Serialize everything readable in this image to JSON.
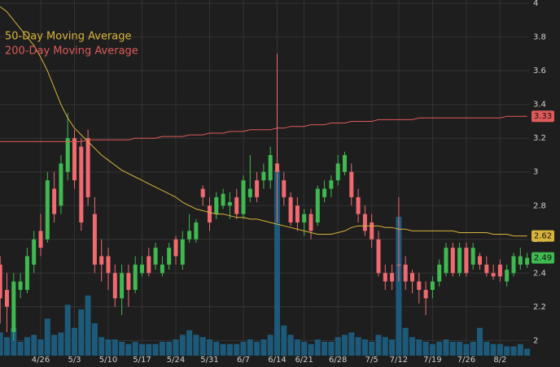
{
  "chart_data": {
    "type": "candlestick",
    "categories": [
      null,
      null,
      null,
      null,
      null,
      null,
      "4/26",
      null,
      null,
      null,
      null,
      "5/3",
      null,
      null,
      null,
      null,
      "5/10",
      null,
      null,
      null,
      null,
      "5/17",
      null,
      null,
      null,
      null,
      "5/24",
      null,
      null,
      null,
      null,
      "5/31",
      null,
      null,
      null,
      null,
      "6/7",
      null,
      null,
      null,
      null,
      "6/14",
      null,
      null,
      null,
      "6/21",
      null,
      null,
      null,
      null,
      "6/28",
      null,
      null,
      null,
      null,
      "7/5",
      null,
      null,
      null,
      "7/12",
      null,
      null,
      null,
      null,
      "7/19",
      null,
      null,
      null,
      null,
      "7/26",
      null,
      null,
      null,
      null,
      "8/2",
      null,
      null,
      null,
      null
    ],
    "open": [
      2.45,
      2.3,
      2.05,
      2.3,
      2.3,
      2.45,
      2.65,
      2.6,
      2.9,
      2.8,
      3.0,
      3.2,
      3.15,
      3.2,
      2.75,
      2.5,
      2.5,
      2.4,
      2.25,
      2.4,
      2.3,
      2.4,
      2.5,
      2.45,
      2.4,
      2.45,
      2.6,
      2.45,
      2.6,
      2.6,
      2.9,
      2.8,
      2.75,
      2.8,
      2.8,
      2.85,
      2.75,
      2.85,
      2.95,
      2.95,
      2.95,
      3.05,
      2.95,
      2.85,
      2.8,
      2.7,
      2.75,
      2.7,
      2.85,
      2.9,
      2.95,
      3.0,
      3.0,
      2.85,
      2.75,
      2.7,
      2.6,
      2.4,
      2.4,
      2.45,
      2.45,
      2.4,
      2.35,
      2.3,
      2.3,
      2.35,
      2.4,
      2.55,
      2.4,
      2.55,
      2.45,
      2.5,
      2.45,
      2.4,
      2.45,
      2.35,
      2.4,
      2.45,
      2.45
    ],
    "high": [
      2.5,
      2.4,
      2.4,
      2.4,
      2.55,
      2.65,
      2.75,
      3.0,
      3.0,
      3.1,
      3.35,
      3.25,
      3.2,
      3.25,
      2.85,
      2.6,
      2.55,
      2.45,
      2.45,
      2.45,
      2.5,
      2.5,
      2.55,
      2.58,
      2.5,
      2.58,
      2.62,
      2.65,
      2.75,
      2.72,
      2.92,
      2.85,
      2.88,
      2.9,
      2.88,
      2.9,
      2.98,
      3.1,
      3.0,
      3.05,
      3.15,
      3.7,
      3.0,
      2.88,
      2.85,
      2.78,
      2.78,
      2.92,
      2.95,
      2.98,
      3.1,
      3.12,
      3.05,
      2.9,
      2.8,
      2.75,
      2.65,
      2.45,
      2.45,
      2.85,
      2.5,
      2.42,
      2.4,
      2.35,
      2.38,
      2.48,
      2.58,
      2.58,
      2.58,
      2.58,
      2.58,
      2.52,
      2.5,
      2.45,
      2.48,
      2.45,
      2.52,
      2.55,
      2.52
    ],
    "low": [
      2.1,
      2.05,
      2.0,
      2.25,
      2.28,
      2.4,
      2.5,
      2.58,
      2.7,
      2.75,
      2.95,
      2.9,
      2.65,
      2.8,
      2.4,
      2.35,
      2.3,
      2.2,
      2.15,
      2.2,
      2.28,
      2.38,
      2.38,
      2.42,
      2.38,
      2.42,
      2.45,
      2.42,
      2.58,
      2.58,
      2.8,
      2.65,
      2.72,
      2.78,
      2.72,
      2.72,
      2.72,
      2.82,
      2.82,
      2.9,
      2.9,
      2.7,
      2.8,
      2.68,
      2.65,
      2.62,
      2.6,
      2.68,
      2.82,
      2.85,
      2.92,
      2.98,
      2.8,
      2.7,
      2.62,
      2.55,
      2.38,
      2.3,
      2.3,
      2.35,
      2.3,
      2.28,
      2.22,
      2.15,
      2.25,
      2.32,
      2.38,
      2.38,
      2.38,
      2.38,
      2.42,
      2.42,
      2.38,
      2.36,
      2.35,
      2.32,
      2.38,
      2.42,
      2.43
    ],
    "close": [
      2.25,
      2.2,
      2.35,
      2.35,
      2.5,
      2.6,
      2.55,
      2.95,
      2.75,
      3.05,
      3.2,
      2.95,
      2.7,
      2.85,
      2.45,
      2.45,
      2.4,
      2.25,
      2.4,
      2.3,
      2.45,
      2.45,
      2.4,
      2.55,
      2.45,
      2.55,
      2.5,
      2.6,
      2.65,
      2.7,
      2.85,
      2.7,
      2.85,
      2.87,
      2.82,
      2.75,
      2.95,
      2.9,
      2.85,
      3.0,
      3.1,
      3.0,
      2.85,
      2.7,
      2.7,
      2.75,
      2.65,
      2.9,
      2.9,
      2.95,
      3.05,
      3.1,
      2.85,
      2.75,
      2.65,
      2.6,
      2.4,
      2.35,
      2.35,
      2.45,
      2.35,
      2.35,
      2.3,
      2.25,
      2.35,
      2.45,
      2.55,
      2.4,
      2.55,
      2.4,
      2.55,
      2.45,
      2.4,
      2.38,
      2.38,
      2.42,
      2.5,
      2.5,
      2.49
    ],
    "volume": [
      1.0,
      0.8,
      1.2,
      0.6,
      0.8,
      0.9,
      0.7,
      1.6,
      0.9,
      1.0,
      2.2,
      1.2,
      2.0,
      2.6,
      1.4,
      0.8,
      0.7,
      0.7,
      0.6,
      0.5,
      0.6,
      0.5,
      0.5,
      0.5,
      0.6,
      0.6,
      0.7,
      0.9,
      1.1,
      0.9,
      0.8,
      0.7,
      0.6,
      0.5,
      0.5,
      0.5,
      0.6,
      0.7,
      0.6,
      0.7,
      0.9,
      8.0,
      1.3,
      0.9,
      0.7,
      0.6,
      0.5,
      0.7,
      0.6,
      0.6,
      0.8,
      0.9,
      1.0,
      0.8,
      0.7,
      0.6,
      0.9,
      0.8,
      0.7,
      6.0,
      1.2,
      0.8,
      0.7,
      0.6,
      0.5,
      0.6,
      0.7,
      0.6,
      0.6,
      0.5,
      0.6,
      1.2,
      0.6,
      0.5,
      0.5,
      0.4,
      0.4,
      0.5,
      0.3
    ],
    "series": [
      {
        "name": "50-Day Moving Average",
        "color": "#d9b43a",
        "values": [
          3.98,
          3.95,
          3.9,
          3.85,
          3.8,
          3.75,
          3.68,
          3.6,
          3.5,
          3.4,
          3.32,
          3.26,
          3.22,
          3.18,
          3.14,
          3.1,
          3.07,
          3.04,
          3.01,
          2.99,
          2.97,
          2.95,
          2.93,
          2.91,
          2.89,
          2.87,
          2.85,
          2.82,
          2.8,
          2.78,
          2.77,
          2.76,
          2.75,
          2.75,
          2.74,
          2.73,
          2.73,
          2.72,
          2.72,
          2.71,
          2.7,
          2.69,
          2.68,
          2.67,
          2.66,
          2.65,
          2.64,
          2.63,
          2.63,
          2.63,
          2.64,
          2.65,
          2.67,
          2.68,
          2.68,
          2.68,
          2.68,
          2.67,
          2.67,
          2.66,
          2.66,
          2.65,
          2.65,
          2.65,
          2.65,
          2.65,
          2.65,
          2.65,
          2.64,
          2.64,
          2.64,
          2.64,
          2.64,
          2.63,
          2.63,
          2.63,
          2.62,
          2.62,
          2.62
        ]
      },
      {
        "name": "200-Day Moving Average",
        "color": "#e05a5a",
        "values": [
          3.18,
          3.18,
          3.18,
          3.18,
          3.18,
          3.18,
          3.18,
          3.18,
          3.18,
          3.18,
          3.18,
          3.18,
          3.18,
          3.19,
          3.19,
          3.19,
          3.19,
          3.19,
          3.19,
          3.19,
          3.2,
          3.2,
          3.2,
          3.2,
          3.21,
          3.21,
          3.21,
          3.21,
          3.22,
          3.22,
          3.22,
          3.23,
          3.23,
          3.23,
          3.24,
          3.24,
          3.24,
          3.25,
          3.25,
          3.25,
          3.25,
          3.26,
          3.26,
          3.27,
          3.27,
          3.27,
          3.28,
          3.28,
          3.28,
          3.29,
          3.29,
          3.29,
          3.3,
          3.3,
          3.3,
          3.3,
          3.31,
          3.31,
          3.31,
          3.31,
          3.31,
          3.31,
          3.32,
          3.32,
          3.32,
          3.32,
          3.32,
          3.32,
          3.32,
          3.32,
          3.32,
          3.32,
          3.32,
          3.32,
          3.32,
          3.33,
          3.33,
          3.33,
          3.33
        ]
      }
    ],
    "badges": [
      {
        "value": 3.33,
        "color": "#e05a5a"
      },
      {
        "value": 2.62,
        "color": "#d9b43a"
      },
      {
        "value": 2.49,
        "color": "#3fb950"
      }
    ],
    "up_color": "#3fb950",
    "down_color": "#f06a70",
    "volume_color": "#1d5a7a",
    "ylim": [
      1.91,
      4.02
    ],
    "yticks": [
      2,
      2.2,
      2.4,
      2.6,
      2.8,
      3,
      3.2,
      3.4,
      3.6,
      3.8,
      4
    ],
    "y2lim": [
      0,
      10
    ],
    "grid": true
  }
}
